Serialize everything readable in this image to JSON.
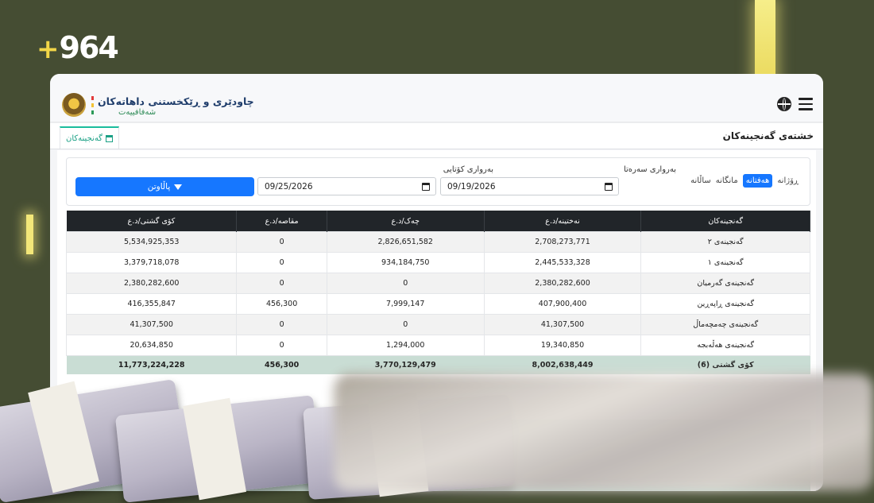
{
  "brand_overlay": {
    "plus": "+",
    "number": "964"
  },
  "app": {
    "title": "چاودێری و ڕێکخستنی داهاتەکان",
    "subtitle": "شەفافییەت"
  },
  "tabs": [
    {
      "label": "گەنجینەکان",
      "icon": "bank-icon"
    }
  ],
  "page_title": "خشتەی گەنجینەکان",
  "filters": {
    "periods": [
      "ڕۆژانە",
      "هەفتانە",
      "مانگانە",
      "ساڵانە"
    ],
    "active_period": "هەفتانە",
    "start_label": "بەرواری سەرەتا",
    "start_value": "09/19/2026",
    "end_label": "بەرواری کۆتایی",
    "end_value": "09/25/2026",
    "button_label": "پاڵاوتن"
  },
  "table": {
    "headers": [
      "گەنجینەکان",
      "نەختینە/د.ع",
      "چەک/د.ع",
      "مقاصە/د.ع",
      "کۆی گشتی/د.ع"
    ],
    "rows": [
      [
        "گەنجینەی ٢",
        "2,708,273,771",
        "2,826,651,582",
        "0",
        "5,534,925,353"
      ],
      [
        "گەنجینەی ١",
        "2,445,533,328",
        "934,184,750",
        "0",
        "3,379,718,078"
      ],
      [
        "گەنجینەی گەرمیان",
        "2,380,282,600",
        "0",
        "0",
        "2,380,282,600"
      ],
      [
        "گەنجینەی ڕاپەڕین",
        "407,900,400",
        "7,999,147",
        "456,300",
        "416,355,847"
      ],
      [
        "گەنجینەی چەمچەماڵ",
        "41,307,500",
        "0",
        "0",
        "41,307,500"
      ],
      [
        "گەنجینەی هەڵەبجە",
        "19,340,850",
        "1,294,000",
        "0",
        "20,634,850"
      ]
    ],
    "total": [
      "کۆی گشتی (6)",
      "8,002,638,449",
      "3,770,129,479",
      "456,300",
      "11,773,224,228"
    ]
  },
  "colors": {
    "accent": "#1677ff",
    "tab_accent": "#1abc9c",
    "header_dark": "#212529",
    "total_row": "#c9ddd4"
  }
}
